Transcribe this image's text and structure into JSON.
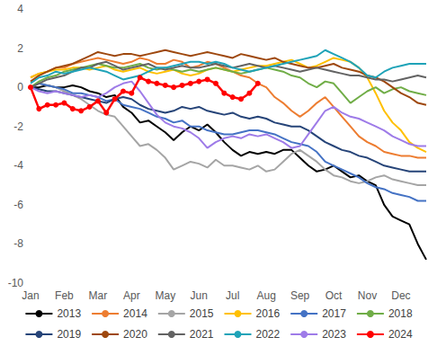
{
  "chart_data": {
    "type": "line",
    "categories": [
      "Jan",
      null,
      null,
      null,
      "Feb",
      null,
      null,
      null,
      "Mar",
      null,
      null,
      null,
      "Apr",
      null,
      null,
      null,
      "May",
      null,
      null,
      null,
      "Jun",
      null,
      null,
      null,
      "Jul",
      null,
      null,
      null,
      "Aug",
      null,
      null,
      null,
      "Sep",
      null,
      null,
      null,
      "Oct",
      null,
      null,
      null,
      "Nov",
      null,
      null,
      null,
      "Dec",
      null,
      null,
      null
    ],
    "ylim": [
      -10,
      4
    ],
    "yticks": [
      -10,
      -8,
      -6,
      -4,
      -2,
      0,
      2,
      4
    ],
    "grid": false,
    "legend": "bottom",
    "series": [
      {
        "name": "2013",
        "color": "#000000",
        "marker": "none",
        "line_style": "solid",
        "values": [
          0,
          0,
          0.1,
          0,
          0,
          0.1,
          0,
          -0.2,
          -0.3,
          -0.5,
          -0.4,
          -1.0,
          -1.3,
          -1.8,
          -1.7,
          -2.0,
          -2.3,
          -2.7,
          -2.3,
          -2.0,
          -2.2,
          -1.9,
          -2.3,
          -2.8,
          -3.2,
          -3.5,
          -3.3,
          -3.4,
          -3.3,
          -3.4,
          -3.2,
          -3.2,
          -3.6,
          -4.0,
          -4.3,
          -4.2,
          -4.0,
          -4.3,
          -4.6,
          -4.5,
          -4.8,
          -5.0,
          -6.0,
          -6.6,
          -6.8,
          -7.0,
          -8.0,
          -8.8
        ]
      },
      {
        "name": "2014",
        "color": "#ED7D31",
        "marker": "none",
        "line_style": "solid",
        "values": [
          0.5,
          0.7,
          0.8,
          1.0,
          1.0,
          1.2,
          1.3,
          1.4,
          1.5,
          1.4,
          1.3,
          1.2,
          1.3,
          1.5,
          1.4,
          1.2,
          1.2,
          1.4,
          1.3,
          1.0,
          1.1,
          1.3,
          1.2,
          1.0,
          0.8,
          0.6,
          0.5,
          0.2,
          0,
          -0.5,
          -0.8,
          -1.2,
          -1.5,
          -1.2,
          -0.8,
          -0.5,
          -1.0,
          -1.5,
          -2.0,
          -2.5,
          -2.8,
          -3.0,
          -3.3,
          -3.4,
          -3.5,
          -3.5,
          -3.6,
          -3.6
        ]
      },
      {
        "name": "2015",
        "color": "#A5A5A5",
        "marker": "none",
        "line_style": "solid",
        "values": [
          0,
          0.2,
          0.1,
          0,
          -0.2,
          -0.4,
          -0.6,
          -0.9,
          -1.2,
          -1.4,
          -1.5,
          -2.0,
          -2.5,
          -3.0,
          -2.9,
          -3.2,
          -3.6,
          -4.2,
          -4.0,
          -3.8,
          -3.9,
          -4.1,
          -3.7,
          -4.0,
          -4.0,
          -4.1,
          -4.2,
          -4.0,
          -4.3,
          -4.2,
          -3.8,
          -3.4,
          -3.2,
          -3.5,
          -3.8,
          -4.2,
          -4.5,
          -4.6,
          -4.8,
          -4.9,
          -4.8,
          -4.6,
          -4.5,
          -4.7,
          -4.8,
          -4.9,
          -5.0,
          -5.0
        ]
      },
      {
        "name": "2016",
        "color": "#FFC000",
        "marker": "none",
        "line_style": "solid",
        "values": [
          0.5,
          0.7,
          0.8,
          0.9,
          0.9,
          1.0,
          1.0,
          0.9,
          1.0,
          1.1,
          0.9,
          0.8,
          0.9,
          1.0,
          0.8,
          0.7,
          0.8,
          0.9,
          0.7,
          0.6,
          0.7,
          0.9,
          1.0,
          0.9,
          0.8,
          0.9,
          1.0,
          1.1,
          1.1,
          1.2,
          1.3,
          1.4,
          1.2,
          1.0,
          1.1,
          1.3,
          1.5,
          1.4,
          1.3,
          1.0,
          0.5,
          -0.3,
          -1.2,
          -1.8,
          -2.2,
          -2.8,
          -3.1,
          -3.3
        ]
      },
      {
        "name": "2017",
        "color": "#4472C4",
        "marker": "none",
        "line_style": "solid",
        "values": [
          0,
          0.2,
          0.1,
          0,
          -0.1,
          -0.3,
          -0.3,
          -0.4,
          -0.5,
          -0.7,
          -0.6,
          -0.9,
          -1.0,
          -1.1,
          -1.3,
          -1.5,
          -1.6,
          -1.8,
          -1.7,
          -2.0,
          -2.0,
          -2.2,
          -2.3,
          -2.4,
          -2.4,
          -2.3,
          -2.2,
          -2.2,
          -2.3,
          -2.4,
          -2.6,
          -2.8,
          -2.9,
          -3.0,
          -3.3,
          -3.8,
          -4.0,
          -4.2,
          -4.4,
          -4.6,
          -4.9,
          -5.1,
          -5.2,
          -5.4,
          -5.5,
          -5.6,
          -5.8,
          -5.8
        ]
      },
      {
        "name": "2018",
        "color": "#70AD47",
        "marker": "none",
        "line_style": "solid",
        "values": [
          0,
          0.3,
          0.5,
          0.6,
          0.8,
          0.9,
          1.0,
          1.1,
          1.2,
          1.1,
          1.0,
          1.0,
          1.1,
          1.2,
          1.0,
          0.9,
          1.0,
          0.9,
          0.8,
          0.9,
          0.8,
          0.9,
          1.0,
          0.9,
          0.8,
          0.7,
          0.8,
          0.9,
          1.0,
          0.9,
          0.8,
          0.6,
          0.5,
          0.2,
          0,
          0.3,
          0.2,
          -0.3,
          -0.8,
          -0.5,
          -0.2,
          0,
          -0.3,
          -0.1,
          0,
          -0.2,
          -0.3,
          -0.4
        ]
      },
      {
        "name": "2019",
        "color": "#264478",
        "marker": "none",
        "line_style": "solid",
        "values": [
          0,
          -0.1,
          -0.2,
          -0.2,
          -0.3,
          -0.4,
          -0.5,
          -0.6,
          -0.7,
          -0.8,
          -0.6,
          -0.5,
          -0.6,
          -0.9,
          -1.1,
          -1.2,
          -1.3,
          -1.2,
          -1.0,
          -1.1,
          -1.0,
          -1.2,
          -1.3,
          -1.4,
          -1.3,
          -1.5,
          -1.6,
          -1.5,
          -1.6,
          -1.8,
          -1.9,
          -2.0,
          -2.0,
          -2.2,
          -2.5,
          -2.8,
          -3.0,
          -3.2,
          -3.3,
          -3.5,
          -3.6,
          -3.8,
          -4.0,
          -4.1,
          -4.2,
          -4.3,
          -4.3,
          -4.3
        ]
      },
      {
        "name": "2020",
        "color": "#9E480E",
        "marker": "none",
        "line_style": "solid",
        "values": [
          0.3,
          0.6,
          0.8,
          1.0,
          1.1,
          1.2,
          1.4,
          1.6,
          1.8,
          1.7,
          1.6,
          1.7,
          1.7,
          1.6,
          1.7,
          1.8,
          1.9,
          1.8,
          1.7,
          1.6,
          1.7,
          1.8,
          1.7,
          1.6,
          1.5,
          1.7,
          1.6,
          1.5,
          1.4,
          1.5,
          1.3,
          1.2,
          1.1,
          1.0,
          1.0,
          1.1,
          1.2,
          1.0,
          0.9,
          0.8,
          0.6,
          0.5,
          0.3,
          0,
          -0.3,
          -0.5,
          -0.8,
          -0.9
        ]
      },
      {
        "name": "2021",
        "color": "#636363",
        "marker": "none",
        "line_style": "solid",
        "values": [
          0,
          0.2,
          0.4,
          0.5,
          0.6,
          0.8,
          1.0,
          1.0,
          1.2,
          1.3,
          1.1,
          0.9,
          1.0,
          1.1,
          1.2,
          1.0,
          0.9,
          1.0,
          1.1,
          1.0,
          1.0,
          1.1,
          1.2,
          1.1,
          1.0,
          1.1,
          1.2,
          1.1,
          1.0,
          1.1,
          1.0,
          0.9,
          0.8,
          0.9,
          1.0,
          0.9,
          0.8,
          0.7,
          0.6,
          0.6,
          0.5,
          0.4,
          0.4,
          0.3,
          0.4,
          0.5,
          0.6,
          0.5
        ]
      },
      {
        "name": "2022",
        "color": "#1FA3B8",
        "marker": "none",
        "line_style": "solid",
        "values": [
          0.2,
          0.5,
          0.6,
          0.8,
          0.7,
          0.8,
          0.9,
          1.0,
          0.9,
          0.8,
          0.6,
          0.4,
          0.5,
          0.6,
          0.8,
          1.0,
          1.0,
          1.1,
          1.2,
          1.3,
          1.3,
          1.2,
          1.3,
          1.2,
          1.0,
          0.9,
          0.8,
          0.9,
          1.0,
          1.1,
          1.2,
          1.3,
          1.4,
          1.5,
          1.6,
          1.9,
          1.7,
          1.5,
          1.3,
          1.0,
          0.6,
          0.5,
          0.8,
          1.0,
          1.1,
          1.2,
          1.2,
          1.2
        ]
      },
      {
        "name": "2023",
        "color": "#9E7BE8",
        "marker": "none",
        "line_style": "solid",
        "values": [
          0,
          -0.2,
          -0.3,
          -0.2,
          -0.3,
          -0.4,
          -0.5,
          -0.4,
          -0.5,
          -0.3,
          0,
          0.2,
          0.3,
          -0.2,
          -0.8,
          -1.4,
          -1.8,
          -2.0,
          -2.1,
          -2.3,
          -2.6,
          -3.1,
          -2.8,
          -2.6,
          -2.5,
          -2.6,
          -2.4,
          -2.5,
          -2.4,
          -2.6,
          -2.8,
          -3.1,
          -3.0,
          -2.4,
          -1.8,
          -1.2,
          -1.0,
          -1.3,
          -1.5,
          -1.6,
          -1.8,
          -2.0,
          -2.2,
          -2.5,
          -2.7,
          -2.9,
          -3.0,
          -3.0
        ]
      },
      {
        "name": "2024",
        "color": "#FF0000",
        "marker": "circle",
        "line_style": "solid",
        "values": [
          0,
          -1.1,
          -0.9,
          -0.9,
          -0.8,
          -1.1,
          -1.2,
          -1.0,
          -0.7,
          -1.3,
          -0.6,
          -0.2,
          -0.3,
          0.5,
          0.3,
          0.2,
          0.1,
          0.0,
          0.1,
          0.2,
          0.3,
          0.4,
          0.2,
          -0.3,
          -0.5,
          -0.6,
          -0.3,
          0.2,
          null,
          null,
          null,
          null,
          null,
          null,
          null,
          null,
          null,
          null,
          null,
          null,
          null,
          null,
          null,
          null,
          null,
          null,
          null,
          null
        ]
      }
    ]
  }
}
